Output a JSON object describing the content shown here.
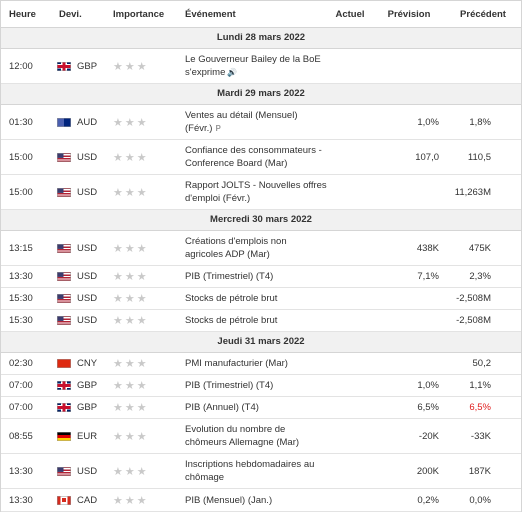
{
  "header": {
    "time": "Heure",
    "currency": "Devi.",
    "importance": "Importance",
    "event": "Événement",
    "actual": "Actuel",
    "forecast": "Prévision",
    "previous": "Précédent"
  },
  "days": [
    {
      "label": "Lundi 28 mars 2022",
      "rows": [
        {
          "time": "12:00",
          "flag": "gb",
          "cur": "GBP",
          "event": "Le Gouverneur Bailey de la BoE s'exprime",
          "speaker": true,
          "actual": "",
          "forecast": "",
          "previous": "",
          "h": 34
        }
      ]
    },
    {
      "label": "Mardi 29 mars 2022",
      "rows": [
        {
          "time": "01:30",
          "flag": "au",
          "cur": "AUD",
          "event": "Ventes au détail (Mensuel) (Févr.)",
          "prelim": true,
          "actual": "",
          "forecast": "1,0%",
          "previous": "1,8%",
          "h": 34
        },
        {
          "time": "15:00",
          "flag": "us",
          "cur": "USD",
          "event": "Confiance des consommateurs - Conference Board (Mar)",
          "actual": "",
          "forecast": "107,0",
          "previous": "110,5",
          "h": 34
        },
        {
          "time": "15:00",
          "flag": "us",
          "cur": "USD",
          "event": "Rapport JOLTS - Nouvelles offres d'emploi (Févr.)",
          "actual": "",
          "forecast": "",
          "previous": "11,263M",
          "h": 34
        }
      ]
    },
    {
      "label": "Mercredi 30 mars 2022",
      "rows": [
        {
          "time": "13:15",
          "flag": "us",
          "cur": "USD",
          "event": "Créations d'emplois non agricoles ADP (Mar)",
          "actual": "",
          "forecast": "438K",
          "previous": "475K",
          "h": 34
        },
        {
          "time": "13:30",
          "flag": "us",
          "cur": "USD",
          "event": "PIB (Trimestriel) (T4)",
          "actual": "",
          "forecast": "7,1%",
          "previous": "2,3%",
          "h": 21
        },
        {
          "time": "15:30",
          "flag": "us",
          "cur": "USD",
          "event": "Stocks de pétrole brut",
          "actual": "",
          "forecast": "",
          "previous": "-2,508M",
          "h": 21
        },
        {
          "time": "15:30",
          "flag": "us",
          "cur": "USD",
          "event": "Stocks de pétrole brut",
          "actual": "",
          "forecast": "",
          "previous": "-2,508M",
          "h": 21
        }
      ]
    },
    {
      "label": "Jeudi 31 mars 2022",
      "rows": [
        {
          "time": "02:30",
          "flag": "cn",
          "cur": "CNY",
          "event": "PMI manufacturier (Mar)",
          "actual": "",
          "forecast": "",
          "previous": "50,2",
          "h": 21
        },
        {
          "time": "07:00",
          "flag": "gb",
          "cur": "GBP",
          "event": "PIB (Trimestriel) (T4)",
          "actual": "",
          "forecast": "1,0%",
          "previous": "1,1%",
          "h": 21
        },
        {
          "time": "07:00",
          "flag": "gb",
          "cur": "GBP",
          "event": "PIB (Annuel) (T4)",
          "actual": "",
          "forecast": "6,5%",
          "previous": "6,5%",
          "prevRed": true,
          "h": 21
        },
        {
          "time": "08:55",
          "flag": "de",
          "cur": "EUR",
          "event": "Evolution du nombre de chômeurs Allemagne (Mar)",
          "actual": "",
          "forecast": "-20K",
          "previous": "-33K",
          "h": 34
        },
        {
          "time": "13:30",
          "flag": "us",
          "cur": "USD",
          "event": "Inscriptions hebdomadaires au chômage",
          "actual": "",
          "forecast": "200K",
          "previous": "187K",
          "h": 34
        },
        {
          "time": "13:30",
          "flag": "ca",
          "cur": "CAD",
          "event": "PIB (Mensuel) (Jan.)",
          "actual": "",
          "forecast": "0,2%",
          "previous": "0,0%",
          "h": 22
        }
      ]
    }
  ],
  "icons": {
    "star": "★★★",
    "speaker": "🔊",
    "prelim": "P"
  },
  "colors": {
    "negative": "#e02020",
    "dayBand": "#f1f1f1",
    "star": "#c9c9c9"
  }
}
